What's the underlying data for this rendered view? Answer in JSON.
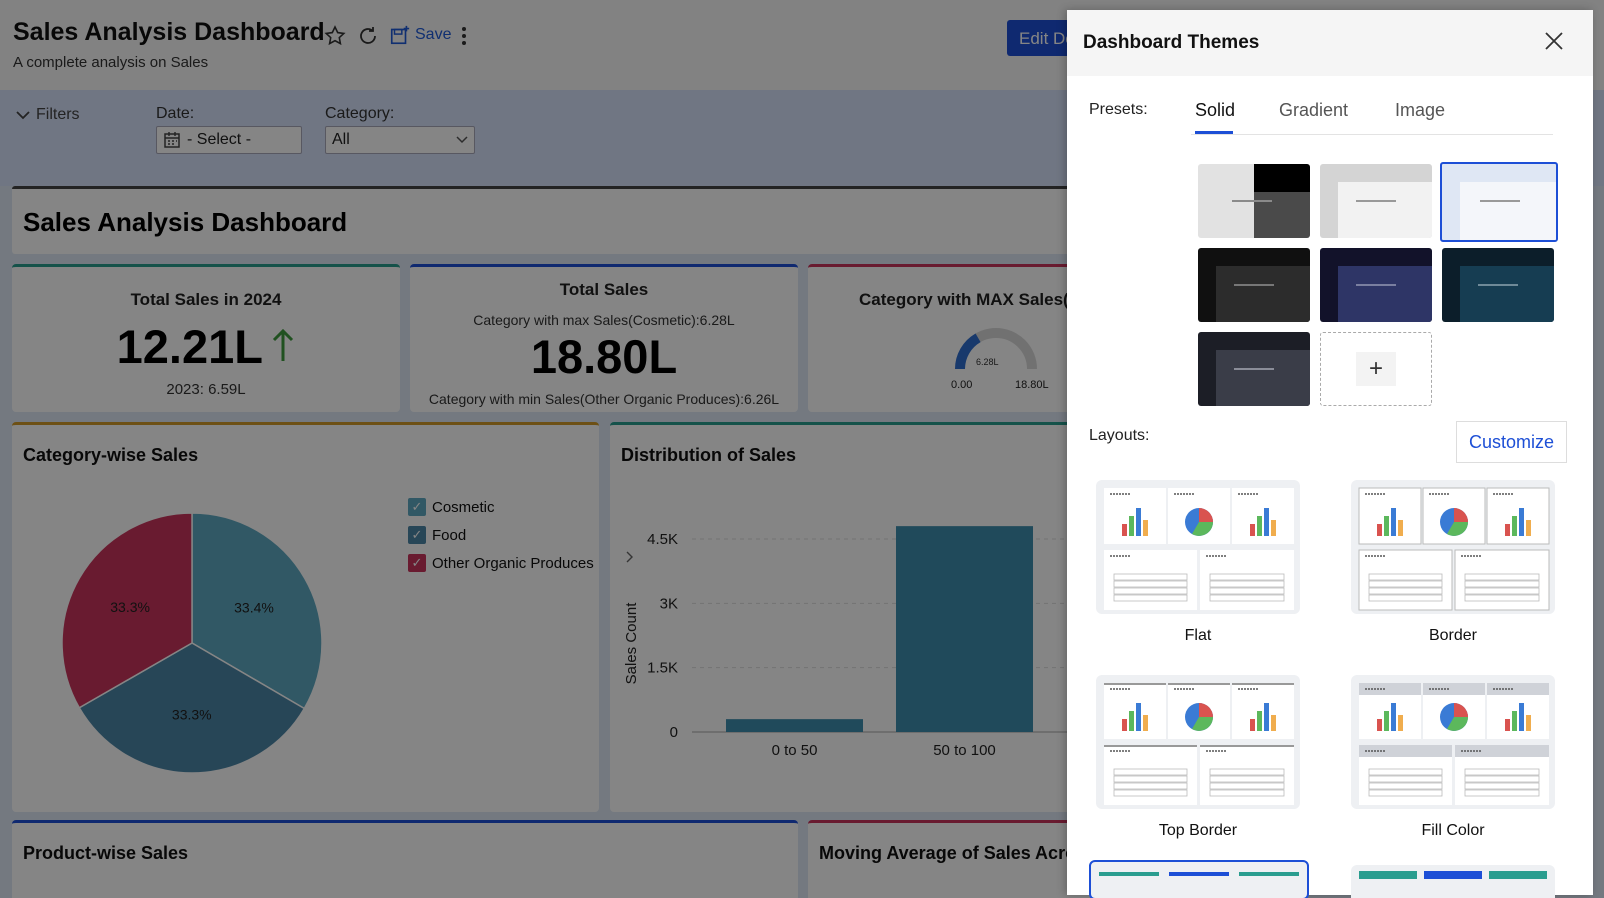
{
  "header": {
    "title": "Sales Analysis Dashboard",
    "subtitle": "A complete analysis on Sales",
    "save_label": "Save",
    "edit_label": "Edit Design",
    "icons": [
      "star-icon",
      "refresh-icon",
      "save-icon",
      "more-icon"
    ]
  },
  "filters": {
    "toggle_label": "Filters",
    "date_label": "Date:",
    "date_value": "- Select -",
    "category_label": "Category:",
    "category_value": "All"
  },
  "dashboard": {
    "title": "Sales Analysis Dashboard"
  },
  "kpi1": {
    "title": "Total Sales in 2024",
    "value": "12.21L",
    "compare": "2023: 6.59L"
  },
  "kpi2": {
    "title": "Total Sales",
    "max_text": "Category with max Sales(Cosmetic):6.28L",
    "value": "18.80L",
    "min_text": "Category with min Sales(Other Organic Produces):6.26L"
  },
  "kpi3": {
    "title": "Category with MAX Sales(Cosmetic)",
    "gauge_value": "6.28L",
    "gauge_min": "0.00",
    "gauge_max": "18.80L",
    "gauge_fraction": 0.334
  },
  "pie": {
    "title": "Category-wise Sales",
    "legend": [
      {
        "label": "Cosmetic",
        "color": "#5fa9c2"
      },
      {
        "label": "Food",
        "color": "#4c86a8"
      },
      {
        "label": "Other Organic Produces",
        "color": "#c9355d"
      }
    ]
  },
  "distribution": {
    "title": "Distribution of Sales"
  },
  "product": {
    "title": "Product-wise Sales"
  },
  "moving": {
    "title": "Moving Average of Sales Across"
  },
  "chart_data": [
    {
      "type": "pie",
      "title": "Category-wise Sales",
      "categories": [
        "Cosmetic",
        "Food",
        "Other Organic Produces"
      ],
      "values": [
        33.4,
        33.3,
        33.3
      ],
      "labels": [
        "33.4%",
        "33.3%",
        "33.3%"
      ],
      "colors": [
        "#5fa9c2",
        "#4c86a8",
        "#c9355d"
      ]
    },
    {
      "type": "bar",
      "title": "Distribution of Sales",
      "ylabel": "Sales Count",
      "categories": [
        "0 to 50",
        "50 to 100"
      ],
      "values": [
        300,
        4800
      ],
      "ylim": [
        0,
        4500
      ],
      "yticks": [
        "0",
        "1.5K",
        "3K",
        "4.5K"
      ],
      "grid": true
    }
  ],
  "panel": {
    "title": "Dashboard Themes",
    "presets_label": "Presets:",
    "tabs": [
      "Solid",
      "Gradient",
      "Image"
    ],
    "add_label": "+",
    "layouts_label": "Layouts:",
    "customize_label": "Customize",
    "layouts": [
      "Flat",
      "Border",
      "Top Border",
      "Fill Color"
    ]
  }
}
